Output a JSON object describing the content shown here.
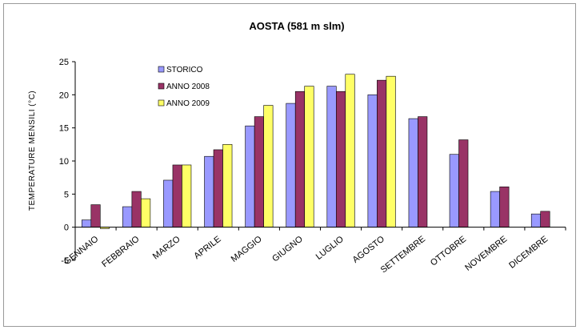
{
  "chart_data": {
    "type": "bar",
    "title": "AOSTA (581 m slm)",
    "xlabel": "",
    "ylabel": "TEMPERATURE MENSILI (°C)",
    "ylim": [
      -5,
      25
    ],
    "yticks": [
      -5,
      0,
      5,
      10,
      15,
      20,
      25
    ],
    "legend_position": "top-left",
    "grid": false,
    "categories": [
      "GENNAIO",
      "FEBBRAIO",
      "MARZO",
      "APRILE",
      "MAGGIO",
      "GIUGNO",
      "LUGLIO",
      "AGOSTO",
      "SETTEMBRE",
      "OTTOBRE",
      "NOVEMBRE",
      "DICEMBRE"
    ],
    "series": [
      {
        "name": "STORICO",
        "color": "#9999ff",
        "values": [
          1.1,
          3.1,
          7.1,
          10.7,
          15.3,
          18.7,
          21.3,
          20.0,
          16.4,
          11.0,
          5.4,
          2.0
        ]
      },
      {
        "name": "ANNO 2008",
        "color": "#993366",
        "values": [
          3.4,
          5.4,
          9.4,
          11.7,
          16.7,
          20.5,
          20.5,
          22.2,
          16.7,
          13.2,
          6.1,
          2.4
        ]
      },
      {
        "name": "ANNO 2009",
        "color": "#ffff66",
        "values": [
          -0.2,
          4.3,
          9.4,
          12.5,
          18.4,
          21.3,
          23.1,
          22.8,
          null,
          null,
          null,
          null
        ]
      }
    ]
  }
}
